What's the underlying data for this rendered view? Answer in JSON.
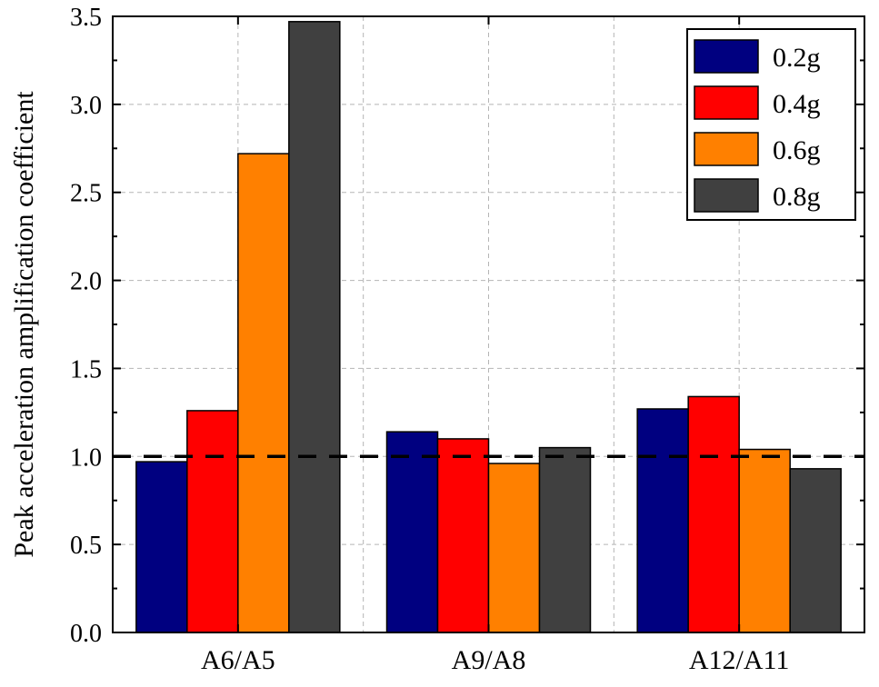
{
  "chart_data": {
    "type": "bar",
    "title": "",
    "xlabel": "",
    "ylabel": "Peak acceleration amplification coefficient",
    "ylim": [
      0,
      3.5
    ],
    "yticks": [
      "0.0",
      "0.5",
      "1.0",
      "1.5",
      "2.0",
      "2.5",
      "3.0",
      "3.5"
    ],
    "categories": [
      "A6/A5",
      "A9/A8",
      "A12/A11"
    ],
    "series": [
      {
        "name": "0.2g",
        "color": "#000080",
        "values": [
          0.97,
          1.14,
          1.27
        ]
      },
      {
        "name": "0.4g",
        "color": "#ff0000",
        "values": [
          1.26,
          1.1,
          1.34
        ]
      },
      {
        "name": "0.6g",
        "color": "#ff8000",
        "values": [
          2.72,
          0.96,
          1.04
        ]
      },
      {
        "name": "0.8g",
        "color": "#404040",
        "values": [
          3.47,
          1.05,
          0.93
        ]
      }
    ],
    "reference_line": {
      "value": 1.0,
      "style": "dashed",
      "color": "#000000"
    },
    "grid": true,
    "legend_position": "top-right"
  }
}
